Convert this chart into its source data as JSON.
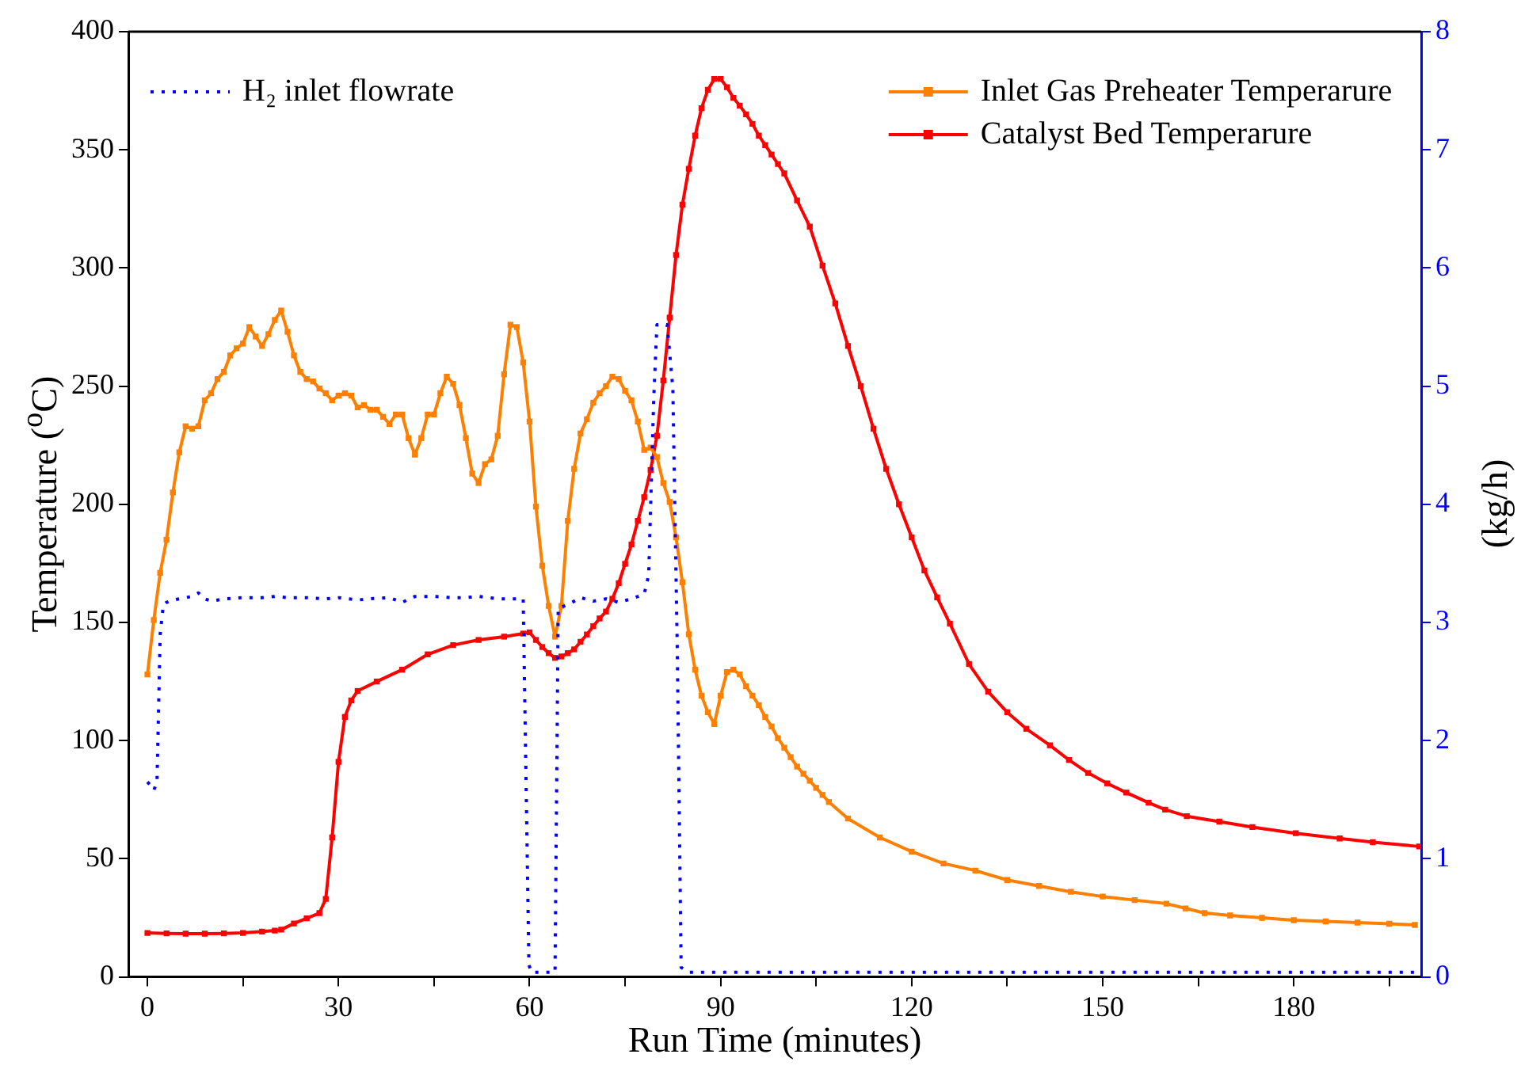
{
  "chart_data": {
    "type": "line",
    "xlabel": "Run Time (minutes)",
    "ylabel": "Temperature ($^{o}$C)",
    "y2label": "(kg/h)",
    "xlim": [
      -3,
      200
    ],
    "xticks": [
      0,
      {
        "value": 15,
        "label": null
      },
      30,
      {
        "value": 45,
        "label": null
      },
      60,
      {
        "value": 75,
        "label": null
      },
      90,
      {
        "value": 105,
        "label": null
      },
      120,
      {
        "value": 135,
        "label": null
      },
      150,
      {
        "value": 165,
        "label": null
      },
      180,
      {
        "value": 195,
        "label": null
      }
    ],
    "ylim": [
      0,
      400
    ],
    "yticks": [
      0,
      50,
      100,
      150,
      200,
      250,
      300,
      350,
      400
    ],
    "y2lim": [
      0,
      8
    ],
    "y2ticks": [
      0,
      1,
      2,
      3,
      4,
      5,
      6,
      7,
      8
    ],
    "legend": "top right",
    "series": [
      {
        "name": "H₂ inlet flowrate",
        "color": "#0000ff",
        "axis": "y2",
        "marker": "none",
        "line_style": "dotted",
        "x": [
          0,
          0.5,
          1,
          1.5,
          2,
          2.5,
          3,
          4,
          5,
          7,
          8,
          9,
          10,
          12,
          15,
          18,
          20,
          22,
          25,
          28,
          30,
          33,
          35,
          38,
          40,
          42,
          45,
          48,
          50,
          52,
          55,
          57,
          59,
          59.9,
          60.3,
          64,
          64.5,
          66,
          68,
          70,
          72,
          74,
          76,
          78,
          78.7,
          79.5,
          80,
          81.6,
          82.5,
          83.2,
          83.8,
          85,
          199
        ],
        "values": [
          1.65,
          1.62,
          1.58,
          1.65,
          2.9,
          3.15,
          3.17,
          3.19,
          3.2,
          3.22,
          3.25,
          3.2,
          3.18,
          3.2,
          3.21,
          3.21,
          3.22,
          3.21,
          3.21,
          3.2,
          3.21,
          3.19,
          3.2,
          3.21,
          3.17,
          3.22,
          3.22,
          3.21,
          3.21,
          3.22,
          3.2,
          3.2,
          3.2,
          0.1,
          0.04,
          0.04,
          3.12,
          3.15,
          3.21,
          3.18,
          3.2,
          3.17,
          3.2,
          3.24,
          3.4,
          4.9,
          5.52,
          5.52,
          4.98,
          2.75,
          0.08,
          0.04,
          0.04
        ]
      },
      {
        "name": "Inlet Gas Preheater Temperarure",
        "color": "#ff8000",
        "marker": "square",
        "line_style": "solid",
        "x": [
          0,
          1,
          2,
          3,
          4,
          5,
          6,
          7,
          8,
          9,
          10,
          11,
          12,
          13,
          14,
          15,
          16,
          17,
          18,
          19,
          20,
          21,
          22,
          23,
          24,
          25,
          26,
          27,
          28,
          29,
          30,
          31,
          32,
          33,
          34,
          35,
          36,
          37,
          38,
          39,
          40,
          41,
          42,
          43,
          44,
          45,
          46,
          47,
          48,
          49,
          50,
          51,
          52,
          53,
          54,
          55,
          56,
          57,
          58,
          59,
          60,
          61,
          62,
          63,
          64,
          65,
          66,
          67,
          68,
          69,
          70,
          71,
          72,
          73,
          74,
          75,
          76,
          77,
          78,
          79,
          80,
          81,
          82,
          83,
          84,
          85,
          86,
          87,
          88,
          89,
          90,
          91,
          92,
          93,
          94,
          95,
          96,
          97,
          98,
          99,
          100,
          101,
          102,
          103,
          104,
          105,
          106,
          107,
          110,
          115,
          120,
          125,
          130,
          135,
          140,
          145,
          150,
          155,
          160,
          163,
          166,
          170,
          175,
          180,
          185,
          190,
          195,
          199
        ],
        "values": [
          128,
          151,
          171,
          185,
          205,
          222,
          233,
          232,
          233,
          244,
          247,
          253,
          256,
          263,
          266,
          268,
          275,
          271,
          267,
          272,
          278,
          282,
          273,
          263,
          256,
          253,
          252,
          249,
          247,
          244,
          246,
          247,
          246,
          241,
          242,
          240,
          240,
          237,
          234,
          238,
          238,
          228,
          221,
          228,
          238,
          238,
          247,
          254,
          251,
          242,
          228,
          213,
          209,
          217,
          219,
          229,
          255,
          276,
          275,
          260,
          235,
          199,
          174,
          157,
          144,
          157,
          193,
          215,
          230,
          236,
          243,
          247,
          250,
          254,
          253,
          248,
          244,
          235,
          223,
          224,
          220,
          209,
          201,
          186,
          167,
          145,
          130,
          119,
          112,
          107,
          119,
          129,
          130,
          128,
          123,
          119,
          115,
          110,
          106,
          101,
          97,
          93,
          89,
          86,
          83,
          80,
          77,
          74,
          67,
          59,
          53,
          48,
          45,
          41,
          38.5,
          36,
          34,
          32.5,
          31,
          29,
          27,
          26,
          25,
          24,
          23.5,
          23,
          22.5,
          22
        ]
      },
      {
        "name": "Catalyst Bed Temperarure",
        "color": "#ff0000",
        "marker": "square",
        "line_style": "solid",
        "x": [
          0,
          3,
          6,
          9,
          12,
          15,
          18,
          20,
          21,
          23,
          25,
          27,
          28,
          29,
          30,
          31,
          32,
          33,
          36,
          40,
          44,
          48,
          52,
          56,
          59,
          60,
          61,
          62,
          63,
          64,
          65,
          66,
          67,
          68,
          69,
          70,
          71,
          72,
          73,
          74,
          75,
          76,
          77,
          78,
          79,
          80,
          81,
          82,
          83,
          84,
          85,
          86,
          87,
          88,
          89,
          90,
          91,
          92,
          93,
          94,
          95,
          96,
          97,
          98,
          99,
          100,
          102,
          104,
          106,
          108,
          110,
          112,
          114,
          116,
          118,
          120,
          122,
          124,
          126,
          129,
          132,
          135,
          138,
          141.7,
          144.7,
          147.7,
          150.7,
          153.7,
          157.2,
          159.8,
          163.2,
          168.3,
          173.5,
          180.3,
          187.2,
          192.4,
          199.7
        ],
        "values": [
          18.6,
          18.4,
          18.3,
          18.3,
          18.4,
          18.6,
          19.2,
          19.6,
          20,
          22.6,
          24.8,
          27,
          33,
          59,
          91,
          110,
          117,
          121,
          125,
          130,
          136.5,
          140.4,
          142.6,
          144,
          145.3,
          145.8,
          142.6,
          139.6,
          137,
          135,
          135.6,
          137,
          138.6,
          141.8,
          144.9,
          148.4,
          151.7,
          154.6,
          160,
          166.6,
          174.8,
          183,
          193,
          203,
          214.5,
          229,
          252.4,
          279,
          305.5,
          326.8,
          342,
          356,
          367.6,
          375.4,
          380,
          380,
          376.5,
          372,
          368.7,
          365,
          361,
          356,
          352,
          348,
          344,
          340,
          328.6,
          317.5,
          301,
          285,
          267,
          250,
          232,
          215,
          200,
          186,
          172,
          160.6,
          149.5,
          132.4,
          120.7,
          112,
          105,
          98,
          91.8,
          86.3,
          81.9,
          78,
          73.7,
          70.8,
          68,
          65.7,
          63.4,
          60.8,
          58.6,
          57,
          55.2
        ]
      }
    ]
  }
}
